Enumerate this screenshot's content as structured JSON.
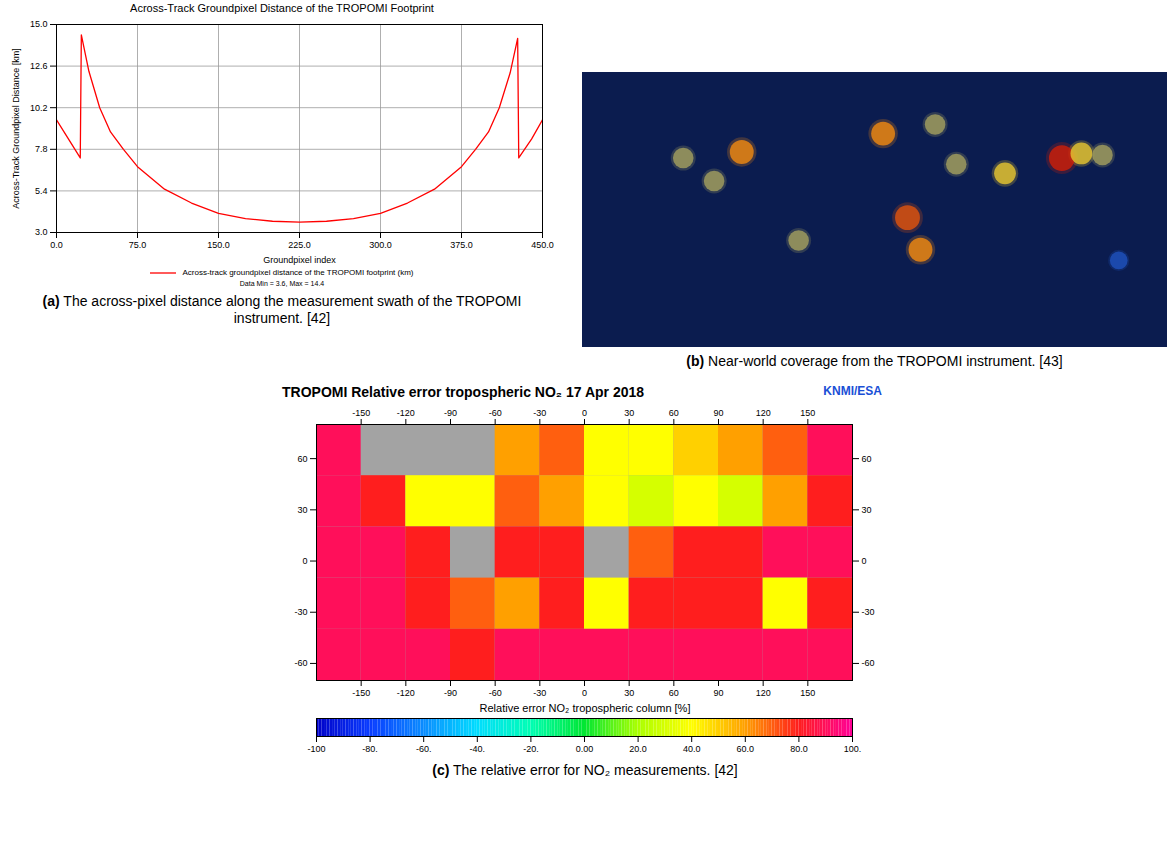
{
  "chart_data": [
    {
      "type": "line",
      "label": "(a)",
      "title": "Across-Track Groundpixel Distance of the TROPOMI Footprint",
      "caption": "The across-pixel distance along the measurement swath of the TROPOMI instrument. [42]",
      "x_label": "Groundpixel index",
      "y_label": "Across-Track Groundpixel Distance [km]",
      "note": "Data Min = 3.6, Max = 14.4",
      "x": [
        0,
        10,
        22,
        23,
        30,
        40,
        50,
        62,
        75,
        100,
        125,
        150,
        175,
        200,
        225,
        250,
        275,
        300,
        325,
        350,
        375,
        388,
        400,
        410,
        420,
        427,
        428,
        440,
        450
      ],
      "series": [
        {
          "name": "Across-track groundpixel distance of the TROPOMI footprint (km)",
          "color": "#ff0000",
          "values": [
            9.5,
            8.5,
            7.3,
            14.4,
            12.3,
            10.2,
            8.8,
            7.8,
            6.8,
            5.5,
            4.7,
            4.1,
            3.8,
            3.65,
            3.6,
            3.65,
            3.8,
            4.1,
            4.7,
            5.5,
            6.8,
            7.8,
            8.8,
            10.2,
            12.2,
            14.2,
            7.3,
            8.4,
            9.5
          ]
        }
      ],
      "xlim": [
        0,
        450
      ],
      "ylim": [
        3,
        15
      ],
      "xticks": [
        {
          "value": 0,
          "label": "0.0"
        },
        {
          "value": 75,
          "label": "75.0"
        },
        {
          "value": 150,
          "label": "150.0"
        },
        {
          "value": 225,
          "label": "225.0"
        },
        {
          "value": 300,
          "label": "300.0"
        },
        {
          "value": 375,
          "label": "375.0"
        },
        {
          "value": 450,
          "label": "450.0"
        }
      ],
      "yticks": [
        {
          "value": 3,
          "label": "3.0"
        },
        {
          "value": 5.4,
          "label": "5.4"
        },
        {
          "value": 7.8,
          "label": "7.8"
        },
        {
          "value": 10.2,
          "label": "10.2"
        },
        {
          "value": 12.6,
          "label": "12.6"
        },
        {
          "value": 15,
          "label": "15.0"
        }
      ],
      "grid": true,
      "legend": "bottom"
    },
    {
      "type": "map",
      "label": "(b)",
      "caption": "Near-world coverage from the TROPOMI instrument. [43]",
      "xlim": [
        -180,
        180
      ],
      "ylim": [
        -90,
        90
      ],
      "tick_labels": false,
      "points": {
        "lon": [
          -82,
          -118,
          -99,
          -47,
          5,
          37,
          20,
          28,
          50,
          80,
          115,
          127,
          140,
          150
        ],
        "lat": [
          38,
          34,
          19,
          -20,
          50,
          56,
          -5,
          -26,
          30,
          24,
          34,
          37,
          36,
          -33
        ],
        "values": [
          0.8,
          0.5,
          0.5,
          0.5,
          0.8,
          0.5,
          0.9,
          0.8,
          0.5,
          0.6,
          1.0,
          0.6,
          0.5,
          0.3
        ]
      },
      "colors": [
        "#1d4fb8",
        "#ffd21a",
        "#c81e0a"
      ]
    },
    {
      "type": "heatmap",
      "label": "(c)",
      "title": "TROPOMI Relative error tropospheric NO₂   17 Apr 2018",
      "credit": "KNMI/ESA",
      "x_label": "Relative error NO₂ tropospheric column [%]",
      "caption": "The relative error for NO₂ measurements. [42]",
      "xlim": [
        -180,
        180
      ],
      "ylim": [
        -70,
        80
      ],
      "xticks": [
        -150,
        -120,
        -90,
        -60,
        -30,
        0,
        30,
        60,
        90,
        120,
        150
      ],
      "yticks": [
        -60,
        -30,
        0,
        30,
        60
      ],
      "lon": [
        -165,
        -135,
        -105,
        -75,
        -45,
        -15,
        15,
        45,
        75,
        105,
        135,
        165
      ],
      "lat": [
        65,
        35,
        5,
        -25,
        -55
      ],
      "cells": [
        [
          90,
          null,
          null,
          null,
          60,
          70,
          40,
          40,
          50,
          60,
          70,
          90
        ],
        [
          90,
          80,
          40,
          40,
          70,
          60,
          40,
          30,
          40,
          30,
          60,
          80
        ],
        [
          90,
          90,
          80,
          null,
          80,
          80,
          null,
          70,
          80,
          80,
          90,
          90
        ],
        [
          90,
          90,
          80,
          70,
          60,
          80,
          40,
          80,
          80,
          80,
          40,
          80
        ],
        [
          90,
          90,
          90,
          80,
          90,
          90,
          90,
          90,
          90,
          90,
          90,
          90
        ]
      ],
      "colorbar": {
        "range": [
          -100,
          100
        ],
        "ticks": [
          {
            "value": -100,
            "label": "-100"
          },
          {
            "value": -80,
            "label": "-80."
          },
          {
            "value": -60,
            "label": "-60."
          },
          {
            "value": -40,
            "label": "-40."
          },
          {
            "value": -20,
            "label": "-20."
          },
          {
            "value": 0,
            "label": "0.00"
          },
          {
            "value": 20,
            "label": "20.0"
          },
          {
            "value": 40,
            "label": "40.0"
          },
          {
            "value": 60,
            "label": "60.0"
          },
          {
            "value": 80,
            "label": "80.0"
          },
          {
            "value": 100,
            "label": "100."
          }
        ],
        "colors": [
          "#0000c8",
          "#0a3cff",
          "#0a8cff",
          "#00dcff",
          "#00ffb4",
          "#00e632",
          "#aaff00",
          "#ffff00",
          "#ffa000",
          "#ff1e1e",
          "#ff0096"
        ]
      }
    }
  ]
}
